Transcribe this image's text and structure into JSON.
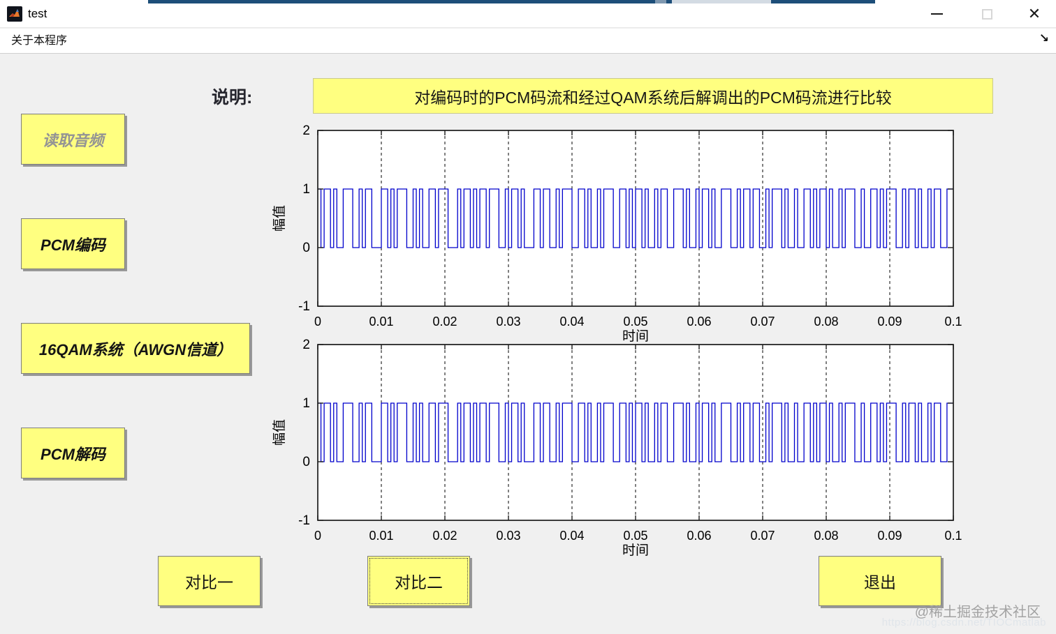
{
  "window": {
    "title": "test",
    "icon": "matlab-logo",
    "controls": {
      "minimize_glyph": "minimize-line",
      "maximize_glyph": "maximize-square",
      "close_glyph": "✕"
    }
  },
  "menu": {
    "items": [
      {
        "label": "关于本程序"
      }
    ],
    "corner_icon_glyph": "↘"
  },
  "description": {
    "label": "说明:",
    "banner": "对编码时的PCM码流和经过QAM系统后解调出的PCM码流进行比较"
  },
  "sidebar_buttons": [
    {
      "label": "读取音频",
      "state": "disabled"
    },
    {
      "label": "PCM编码",
      "state": "enabled"
    },
    {
      "label": "16QAM系统（AWGN信道）",
      "state": "enabled"
    },
    {
      "label": "PCM解码",
      "state": "enabled"
    }
  ],
  "action_buttons": [
    {
      "label": "对比一",
      "focused": false
    },
    {
      "label": "对比二",
      "focused": true
    },
    {
      "label": "退出",
      "focused": false
    }
  ],
  "watermark": {
    "line1": "@稀土掘金技术社区",
    "line2": "https://blog.csdn.net/TIOCmatlab"
  },
  "colors": {
    "button_yellow": "#ffff80",
    "banner_yellow": "#ffff80",
    "waveform_blue": "#0000cc",
    "background_gray": "#f0f0f0",
    "top_sliver_blue": "#1d4e79"
  },
  "chart_data": [
    {
      "type": "line",
      "subtype": "binary-step-waveform",
      "xlabel": "时间",
      "ylabel": "幅值",
      "xlim": [
        0,
        0.1
      ],
      "ylim": [
        -1,
        2
      ],
      "xtick_labels": [
        "0",
        "0.01",
        "0.02",
        "0.03",
        "0.04",
        "0.05",
        "0.06",
        "0.07",
        "0.08",
        "0.09",
        "0.1"
      ],
      "ytick_labels": [
        "-1",
        "0",
        "1",
        "2"
      ],
      "grid": "vertical-dashed-black",
      "legend": "none",
      "line_color": "#0000cc",
      "bits": "10110100111001011000110101110010100110111000101101011011100101101000110110010111001101001011100110101101001011001110100101101001110010110110010111010010011010110100101110010011010111001011010010110011"
    },
    {
      "type": "line",
      "subtype": "binary-step-waveform",
      "xlabel": "时间",
      "ylabel": "幅值",
      "xlim": [
        0,
        0.1
      ],
      "ylim": [
        -1,
        2
      ],
      "xtick_labels": [
        "0",
        "0.01",
        "0.02",
        "0.03",
        "0.04",
        "0.05",
        "0.06",
        "0.07",
        "0.08",
        "0.09",
        "0.1"
      ],
      "ytick_labels": [
        "-1",
        "0",
        "1",
        "2"
      ],
      "grid": "vertical-dashed-black",
      "legend": "none",
      "line_color": "#0000cc",
      "bits": "10110100111001011000110101110010100110111000101101011011100101101000110110010111001101001011100110101101001011001110100101101001110010110110010111010010011010110100101110010011010111001011010010110011"
    }
  ]
}
